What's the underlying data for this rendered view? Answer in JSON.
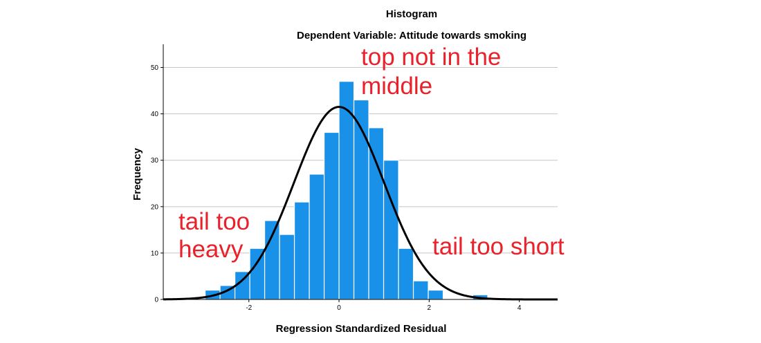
{
  "chart_data": {
    "type": "bar",
    "title": "Histogram",
    "subtitle": "Dependent Variable: Attitude towards smoking",
    "xlabel": "Regression Standardized Residual",
    "ylabel": "Frequency",
    "xlim": [
      -3.9,
      4.85
    ],
    "ylim": [
      0,
      55
    ],
    "xticks": [
      -2,
      0,
      2,
      4
    ],
    "yticks": [
      0,
      10,
      20,
      30,
      40,
      50
    ],
    "grid": true,
    "bin_width": 0.33,
    "bins": [
      {
        "x0": -2.97,
        "x1": -2.64,
        "count": 2
      },
      {
        "x0": -2.64,
        "x1": -2.31,
        "count": 3
      },
      {
        "x0": -2.31,
        "x1": -1.98,
        "count": 6
      },
      {
        "x0": -1.98,
        "x1": -1.65,
        "count": 11
      },
      {
        "x0": -1.65,
        "x1": -1.32,
        "count": 17
      },
      {
        "x0": -1.32,
        "x1": -0.99,
        "count": 14
      },
      {
        "x0": -0.99,
        "x1": -0.66,
        "count": 21
      },
      {
        "x0": -0.66,
        "x1": -0.33,
        "count": 27
      },
      {
        "x0": -0.33,
        "x1": 0.0,
        "count": 36
      },
      {
        "x0": 0.0,
        "x1": 0.33,
        "count": 47
      },
      {
        "x0": 0.33,
        "x1": 0.66,
        "count": 43
      },
      {
        "x0": 0.66,
        "x1": 0.99,
        "count": 37
      },
      {
        "x0": 0.99,
        "x1": 1.32,
        "count": 30
      },
      {
        "x0": 1.32,
        "x1": 1.65,
        "count": 11
      },
      {
        "x0": 1.65,
        "x1": 1.98,
        "count": 4
      },
      {
        "x0": 1.98,
        "x1": 2.31,
        "count": 2
      },
      {
        "x0": 2.31,
        "x1": 2.64,
        "count": 0
      },
      {
        "x0": 2.64,
        "x1": 2.97,
        "count": 0
      },
      {
        "x0": 2.97,
        "x1": 3.3,
        "count": 1
      }
    ],
    "normal_curve": {
      "mean": 0.0,
      "sd": 1.0,
      "peak": 41.5
    },
    "bar_color": "#1a91e9",
    "curve_color": "#000000",
    "annotations": [
      {
        "lines": [
          "top not in the",
          "middle"
        ],
        "color": "#e8212a"
      },
      {
        "lines": [
          "tail too",
          "heavy"
        ],
        "color": "#e8212a"
      },
      {
        "lines": [
          "tail too short"
        ],
        "color": "#e8212a"
      }
    ]
  }
}
